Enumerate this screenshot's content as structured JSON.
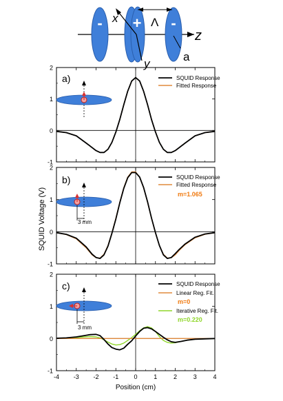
{
  "schematic": {
    "labels": {
      "minus_left": "-",
      "plus": "+",
      "minus_right": "-",
      "x_axis": "x",
      "y_axis": "y",
      "z_axis": "z",
      "period": "Λ",
      "radius": "a"
    },
    "disk_color": "#3f7fd9"
  },
  "shared_axes": {
    "xlabel": "Position (cm)",
    "ylabel": "SQUID Voltage (V)",
    "xlim": [
      -4,
      4
    ],
    "x_ticks": [
      -4,
      -3,
      -2,
      -1,
      0,
      1,
      2,
      3,
      4
    ],
    "x_tick_labels": [
      "-4",
      "-3",
      "-2",
      "-1",
      "0",
      "1",
      "2",
      "3",
      "4"
    ]
  },
  "colors": {
    "squid": "#000000",
    "fitted": "#e08a3c",
    "iterative": "#8fd62a",
    "m_text": "#f07a10",
    "sample": "#3f7fd9",
    "dipole": "#d93030"
  },
  "chart_data": [
    {
      "type": "line",
      "panel_label": "a)",
      "ylim": [
        -1,
        2
      ],
      "y_ticks": [
        -1,
        0,
        1,
        2
      ],
      "y_tick_labels": [
        "-1",
        "0",
        "1",
        "2"
      ],
      "inset": {
        "scale_label": ""
      },
      "legend": {
        "position": "top-right",
        "annotation": ""
      },
      "series": [
        {
          "name": "SQUID Response",
          "color": "#000000",
          "x": [
            -4,
            -3.5,
            -3,
            -2.5,
            -2,
            -1.8,
            -1.6,
            -1.4,
            -1.2,
            -1,
            -0.8,
            -0.6,
            -0.4,
            -0.2,
            0,
            0.2,
            0.4,
            0.6,
            0.8,
            1,
            1.2,
            1.4,
            1.6,
            1.8,
            2,
            2.5,
            3,
            3.5,
            4
          ],
          "y": [
            -0.03,
            -0.07,
            -0.17,
            -0.4,
            -0.64,
            -0.7,
            -0.7,
            -0.6,
            -0.38,
            -0.05,
            0.35,
            0.82,
            1.25,
            1.57,
            1.68,
            1.57,
            1.25,
            0.82,
            0.35,
            -0.05,
            -0.38,
            -0.6,
            -0.7,
            -0.7,
            -0.64,
            -0.4,
            -0.17,
            -0.07,
            -0.03
          ]
        },
        {
          "name": "Fitted Response",
          "color": "#e08a3c",
          "x": [
            -4,
            -3.5,
            -3,
            -2.5,
            -2,
            -1.8,
            -1.6,
            -1.4,
            -1.2,
            -1,
            -0.8,
            -0.6,
            -0.4,
            -0.2,
            0,
            0.2,
            0.4,
            0.6,
            0.8,
            1,
            1.2,
            1.4,
            1.6,
            1.8,
            2,
            2.5,
            3,
            3.5,
            4
          ],
          "y": [
            -0.03,
            -0.07,
            -0.17,
            -0.4,
            -0.64,
            -0.7,
            -0.7,
            -0.6,
            -0.38,
            -0.05,
            0.35,
            0.82,
            1.25,
            1.57,
            1.68,
            1.57,
            1.25,
            0.82,
            0.35,
            -0.05,
            -0.38,
            -0.6,
            -0.7,
            -0.7,
            -0.64,
            -0.4,
            -0.17,
            -0.07,
            -0.03
          ]
        }
      ]
    },
    {
      "type": "line",
      "panel_label": "b)",
      "ylim": [
        -1,
        2
      ],
      "y_ticks": [
        -1,
        0,
        1,
        2
      ],
      "y_tick_labels": [
        "-1",
        "0",
        "1",
        "2"
      ],
      "inset": {
        "scale_label": "3 mm"
      },
      "legend": {
        "position": "top-right",
        "annotation": "m=1.065"
      },
      "series": [
        {
          "name": "SQUID Response",
          "color": "#000000",
          "x": [
            -4,
            -3.5,
            -3,
            -2.5,
            -2.2,
            -2,
            -1.8,
            -1.6,
            -1.4,
            -1.2,
            -1,
            -0.8,
            -0.6,
            -0.4,
            -0.2,
            0,
            0.2,
            0.4,
            0.6,
            0.8,
            1,
            1.2,
            1.4,
            1.6,
            1.8,
            2,
            2.2,
            2.5,
            3,
            3.5,
            4
          ],
          "y": [
            -0.03,
            -0.08,
            -0.2,
            -0.47,
            -0.7,
            -0.8,
            -0.83,
            -0.72,
            -0.45,
            -0.05,
            0.4,
            0.9,
            1.35,
            1.68,
            1.84,
            1.84,
            1.7,
            1.38,
            0.93,
            0.43,
            -0.03,
            -0.43,
            -0.72,
            -0.83,
            -0.8,
            -0.68,
            -0.55,
            -0.38,
            -0.17,
            -0.07,
            -0.03
          ]
        },
        {
          "name": "Fitted Response",
          "color": "#e08a3c",
          "x": [
            -4,
            -3.5,
            -3,
            -2.5,
            -2.2,
            -2,
            -1.8,
            -1.6,
            -1.4,
            -1.2,
            -1,
            -0.8,
            -0.6,
            -0.4,
            -0.2,
            0,
            0.2,
            0.4,
            0.6,
            0.8,
            1,
            1.2,
            1.4,
            1.6,
            1.8,
            2,
            2.2,
            2.5,
            3,
            3.5,
            4
          ],
          "y": [
            -0.03,
            -0.09,
            -0.22,
            -0.5,
            -0.72,
            -0.81,
            -0.82,
            -0.7,
            -0.43,
            -0.04,
            0.42,
            0.92,
            1.37,
            1.7,
            1.86,
            1.86,
            1.7,
            1.37,
            0.92,
            0.42,
            -0.04,
            -0.43,
            -0.7,
            -0.82,
            -0.81,
            -0.72,
            -0.58,
            -0.4,
            -0.19,
            -0.08,
            -0.03
          ]
        }
      ]
    },
    {
      "type": "line",
      "panel_label": "c)",
      "ylim": [
        -1,
        2
      ],
      "y_ticks": [
        -1,
        0,
        1,
        2
      ],
      "y_tick_labels": [
        "-1",
        "0",
        "1",
        "2"
      ],
      "inset": {
        "scale_label": "3 mm"
      },
      "legend": {
        "position": "top-right",
        "annotation": "m=0",
        "annotation_2": "m=0.220"
      },
      "series": [
        {
          "name": "SQUID Response",
          "color": "#000000",
          "x": [
            -4,
            -3.5,
            -3,
            -2.6,
            -2.3,
            -2,
            -1.8,
            -1.6,
            -1.4,
            -1.2,
            -1,
            -0.8,
            -0.6,
            -0.4,
            -0.2,
            0,
            0.2,
            0.4,
            0.6,
            0.8,
            1,
            1.2,
            1.4,
            1.6,
            1.8,
            2,
            2.3,
            2.6,
            3,
            3.5,
            4
          ],
          "y": [
            0.01,
            0.02,
            0.05,
            0.09,
            0.12,
            0.13,
            0.09,
            -0.03,
            -0.17,
            -0.28,
            -0.33,
            -0.35,
            -0.3,
            -0.18,
            -0.07,
            0.08,
            0.22,
            0.32,
            0.34,
            0.3,
            0.22,
            0.13,
            0.04,
            -0.04,
            -0.1,
            -0.12,
            -0.09,
            -0.05,
            -0.02,
            -0.01,
            0
          ]
        },
        {
          "name": "Linear Reg. Fit.",
          "color": "#e08a3c",
          "x": [
            -4,
            4
          ],
          "y": [
            0,
            0
          ]
        },
        {
          "name": "Iterative Reg. Fit.",
          "color": "#8fd62a",
          "x": [
            -4,
            -3.5,
            -3,
            -2.6,
            -2.3,
            -2,
            -1.8,
            -1.6,
            -1.4,
            -1.2,
            -1,
            -0.8,
            -0.6,
            -0.4,
            -0.2,
            0,
            0.2,
            0.4,
            0.6,
            0.8,
            1,
            1.2,
            1.4,
            1.6,
            1.8,
            2,
            2.3,
            2.6,
            3,
            3.5,
            4
          ],
          "y": [
            0,
            0.01,
            0.03,
            0.05,
            0.06,
            0.05,
            0.02,
            -0.04,
            -0.11,
            -0.17,
            -0.2,
            -0.19,
            -0.14,
            -0.06,
            0.03,
            0.13,
            0.24,
            0.33,
            0.37,
            0.33,
            0.22,
            0.06,
            -0.06,
            -0.12,
            -0.14,
            -0.13,
            -0.09,
            -0.05,
            -0.02,
            -0.01,
            0
          ]
        }
      ]
    }
  ]
}
